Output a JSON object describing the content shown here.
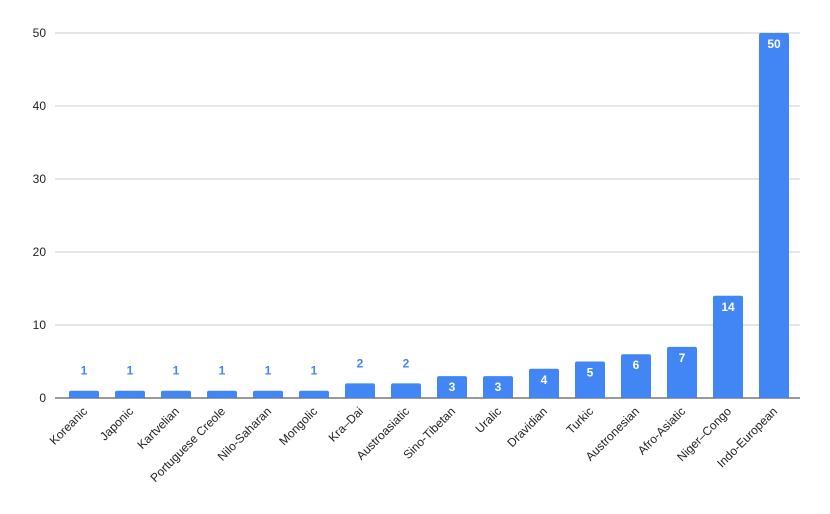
{
  "chart_data": {
    "type": "bar",
    "categories": [
      "Koreanic",
      "Japonic",
      "Kartvelian",
      "Portuguese Creole",
      "Nilo-Saharan",
      "Mongolic",
      "Kra–Dai",
      "Austroasiatic",
      "Sino-Tibetan",
      "Uralic",
      "Dravidian",
      "Turkic",
      "Austronesian",
      "Afro-Asiatic",
      "Niger–Congo",
      "Indo-European"
    ],
    "values": [
      1,
      1,
      1,
      1,
      1,
      1,
      2,
      2,
      3,
      3,
      4,
      5,
      6,
      7,
      14,
      50
    ],
    "color": "#4285f4",
    "ylim": [
      0,
      50
    ],
    "yticks": [
      0,
      10,
      20,
      30,
      40,
      50
    ],
    "grid": true
  }
}
